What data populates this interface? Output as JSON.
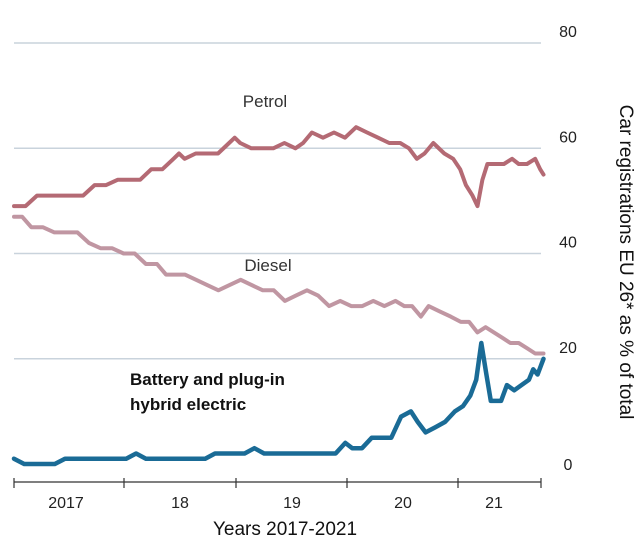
{
  "chart_data": {
    "type": "line",
    "ylabel": "Car registrations EU 26* as % of total",
    "xlabel": "Years 2017-2021",
    "ylim": [
      0,
      80
    ],
    "yticks": [
      0,
      20,
      40,
      60,
      80
    ],
    "x_range": [
      2016.55,
      2021.75
    ],
    "x_labels": [
      {
        "label": "2017",
        "x": 2017.0
      },
      {
        "label": "18",
        "x": 2018.0
      },
      {
        "label": "19",
        "x": 2019.0
      },
      {
        "label": "20",
        "x": 2020.0
      },
      {
        "label": "21",
        "x": 2021.0
      }
    ],
    "x_ticks": [
      2016.55,
      2017.5,
      2018.5,
      2019.5,
      2020.5,
      2021.5
    ],
    "grid": "horizontal",
    "series": [
      {
        "name": "Petrol",
        "color": "#b46a74",
        "points": [
          [
            2016.55,
            49
          ],
          [
            2016.65,
            49
          ],
          [
            2016.75,
            51
          ],
          [
            2016.85,
            51
          ],
          [
            2016.95,
            51
          ],
          [
            2017.05,
            51
          ],
          [
            2017.15,
            51
          ],
          [
            2017.25,
            53
          ],
          [
            2017.35,
            53
          ],
          [
            2017.45,
            54
          ],
          [
            2017.55,
            54
          ],
          [
            2017.65,
            54
          ],
          [
            2017.75,
            56
          ],
          [
            2017.85,
            56
          ],
          [
            2017.95,
            58
          ],
          [
            2018.0,
            59
          ],
          [
            2018.05,
            58
          ],
          [
            2018.15,
            59
          ],
          [
            2018.25,
            59
          ],
          [
            2018.35,
            59
          ],
          [
            2018.45,
            61
          ],
          [
            2018.5,
            62
          ],
          [
            2018.55,
            61
          ],
          [
            2018.65,
            60
          ],
          [
            2018.75,
            60
          ],
          [
            2018.85,
            60
          ],
          [
            2018.95,
            61
          ],
          [
            2019.05,
            60
          ],
          [
            2019.12,
            61
          ],
          [
            2019.2,
            63
          ],
          [
            2019.3,
            62
          ],
          [
            2019.4,
            63
          ],
          [
            2019.5,
            62
          ],
          [
            2019.6,
            64
          ],
          [
            2019.7,
            63
          ],
          [
            2019.8,
            62
          ],
          [
            2019.9,
            61
          ],
          [
            2020.0,
            61
          ],
          [
            2020.08,
            60
          ],
          [
            2020.15,
            58
          ],
          [
            2020.22,
            59
          ],
          [
            2020.3,
            61
          ],
          [
            2020.4,
            59
          ],
          [
            2020.48,
            58
          ],
          [
            2020.55,
            56
          ],
          [
            2020.62,
            53
          ],
          [
            2020.7,
            51
          ],
          [
            2020.76,
            49
          ],
          [
            2020.82,
            54
          ],
          [
            2020.88,
            57
          ],
          [
            2020.98,
            57
          ],
          [
            2021.08,
            57
          ],
          [
            2021.18,
            58
          ],
          [
            2021.26,
            57
          ],
          [
            2021.36,
            57
          ],
          [
            2021.46,
            58
          ],
          [
            2021.52,
            56
          ],
          [
            2021.56,
            55
          ]
        ]
      },
      {
        "name": "Diesel",
        "color": "#c096a2",
        "points": [
          [
            2016.55,
            47
          ],
          [
            2016.62,
            47
          ],
          [
            2016.7,
            45
          ],
          [
            2016.8,
            45
          ],
          [
            2016.9,
            44
          ],
          [
            2017.0,
            44
          ],
          [
            2017.1,
            44
          ],
          [
            2017.2,
            42
          ],
          [
            2017.3,
            41
          ],
          [
            2017.4,
            41
          ],
          [
            2017.5,
            40
          ],
          [
            2017.6,
            40
          ],
          [
            2017.7,
            38
          ],
          [
            2017.8,
            38
          ],
          [
            2017.88,
            36
          ],
          [
            2017.95,
            36
          ],
          [
            2018.05,
            36
          ],
          [
            2018.15,
            35
          ],
          [
            2018.25,
            34
          ],
          [
            2018.35,
            33
          ],
          [
            2018.45,
            34
          ],
          [
            2018.55,
            35
          ],
          [
            2018.65,
            34
          ],
          [
            2018.75,
            33
          ],
          [
            2018.85,
            33
          ],
          [
            2018.95,
            31
          ],
          [
            2019.05,
            32
          ],
          [
            2019.15,
            33
          ],
          [
            2019.25,
            32
          ],
          [
            2019.35,
            30
          ],
          [
            2019.45,
            31
          ],
          [
            2019.55,
            30
          ],
          [
            2019.65,
            30
          ],
          [
            2019.75,
            31
          ],
          [
            2019.85,
            30
          ],
          [
            2019.95,
            31
          ],
          [
            2020.03,
            30
          ],
          [
            2020.1,
            30
          ],
          [
            2020.18,
            28
          ],
          [
            2020.25,
            30
          ],
          [
            2020.35,
            29
          ],
          [
            2020.45,
            28
          ],
          [
            2020.55,
            27
          ],
          [
            2020.65,
            27
          ],
          [
            2020.75,
            25
          ],
          [
            2020.85,
            26
          ],
          [
            2020.95,
            25
          ],
          [
            2021.05,
            24
          ],
          [
            2021.15,
            23
          ],
          [
            2021.25,
            23
          ],
          [
            2021.35,
            22
          ],
          [
            2021.45,
            21
          ],
          [
            2021.55,
            21
          ]
        ]
      },
      {
        "name": "Battery and plug-in hybrid electric",
        "label_lines": [
          "Battery and plug-in",
          "hybrid electric"
        ],
        "color": "#1a6b96",
        "points": [
          [
            2016.55,
            1
          ],
          [
            2016.65,
            0
          ],
          [
            2016.8,
            0
          ],
          [
            2016.95,
            0
          ],
          [
            2017.05,
            1
          ],
          [
            2017.2,
            1
          ],
          [
            2017.35,
            1
          ],
          [
            2017.5,
            1
          ],
          [
            2017.65,
            1
          ],
          [
            2017.75,
            2
          ],
          [
            2017.85,
            1
          ],
          [
            2018.0,
            1
          ],
          [
            2018.15,
            1
          ],
          [
            2018.3,
            1
          ],
          [
            2018.45,
            1
          ],
          [
            2018.55,
            2
          ],
          [
            2018.7,
            2
          ],
          [
            2018.85,
            2
          ],
          [
            2018.95,
            3
          ],
          [
            2019.05,
            2
          ],
          [
            2019.2,
            2
          ],
          [
            2019.35,
            2
          ],
          [
            2019.5,
            2
          ],
          [
            2019.65,
            2
          ],
          [
            2019.78,
            2
          ],
          [
            2019.88,
            4
          ],
          [
            2019.95,
            3
          ],
          [
            2020.05,
            3
          ],
          [
            2020.15,
            5
          ],
          [
            2020.25,
            5
          ],
          [
            2020.35,
            5
          ],
          [
            2020.45,
            9
          ],
          [
            2020.55,
            10
          ],
          [
            2020.62,
            8
          ],
          [
            2020.7,
            6
          ],
          [
            2020.8,
            7
          ],
          [
            2020.9,
            8
          ],
          [
            2021.0,
            10
          ],
          [
            2021.1,
            11
          ],
          [
            2021.2,
            13
          ],
          [
            2021.28,
            16
          ],
          [
            2021.35,
            23
          ],
          [
            2021.42,
            17
          ],
          [
            2021.48,
            12
          ],
          [
            2021.55,
            12
          ],
          [
            2021.62,
            12
          ],
          [
            2021.7,
            15
          ],
          [
            2021.8,
            14
          ],
          [
            2021.9,
            15
          ],
          [
            2022.0,
            16
          ],
          [
            2022.06,
            18
          ],
          [
            2022.12,
            17
          ],
          [
            2022.2,
            20
          ]
        ]
      }
    ]
  }
}
